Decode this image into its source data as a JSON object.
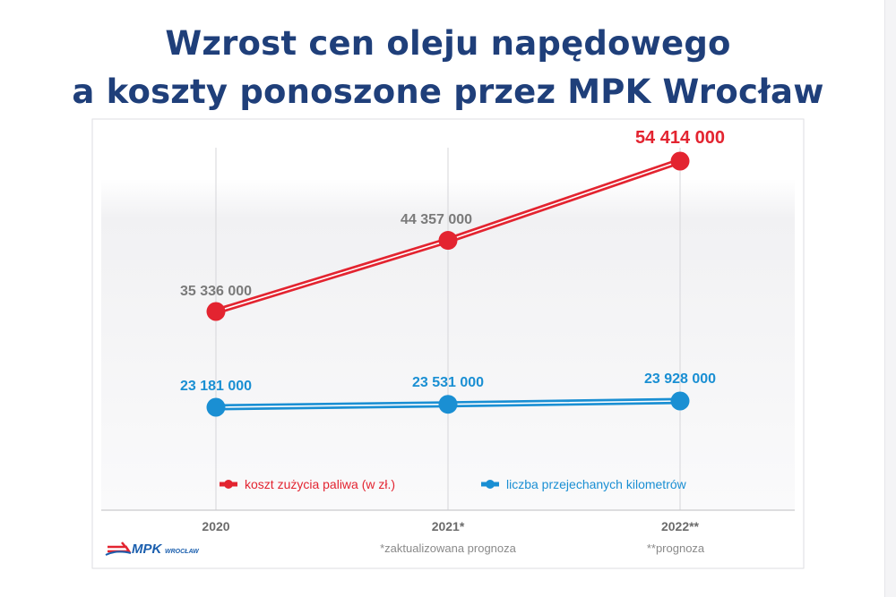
{
  "title": {
    "line1": "Wzrost cen oleju napędowego",
    "line2": "a koszty ponoszone przez MPK Wrocław"
  },
  "colors": {
    "title": "#1f3f7a",
    "fuel_series": "#e32430",
    "km_series": "#1a8fd3",
    "tick_text": "#6b6b6b",
    "value_grey": "#7a7a7a",
    "logo_red": "#e32430",
    "logo_blue": "#1b5fae"
  },
  "chart_data": {
    "type": "line",
    "categories": [
      "2020",
      "2021*",
      "2022**"
    ],
    "series": [
      {
        "name": "koszt zużycia paliwa (w zł.)",
        "values": [
          35336000,
          44357000,
          54414000
        ],
        "value_labels": [
          "35 336 000",
          "44 357 000",
          "54 414 000"
        ],
        "color": "#e32430"
      },
      {
        "name": "liczba przejechanych kilometrów",
        "values": [
          23181000,
          23531000,
          23928000
        ],
        "value_labels": [
          "23 181 000",
          "23 531 000",
          "23 928 000"
        ],
        "color": "#1a8fd3"
      }
    ],
    "footnotes": [
      "*zaktualizowana prognoza",
      "**prognoza"
    ],
    "legend_position": "bottom",
    "grid": "vertical"
  },
  "logo": {
    "brand": "MPK",
    "sub": "WROCŁAW"
  }
}
